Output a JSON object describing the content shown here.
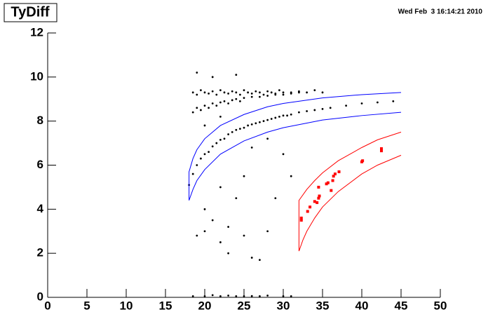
{
  "chart_data": {
    "type": "scatter",
    "title": "TyDiff",
    "date": "Wed Feb  3 16:14:21 2010",
    "xlim": [
      0,
      50
    ],
    "ylim": [
      0,
      12
    ],
    "xticks": [
      0,
      5,
      10,
      15,
      20,
      25,
      30,
      35,
      40,
      45,
      50
    ],
    "yticks": [
      0,
      2,
      4,
      6,
      8,
      10,
      12
    ],
    "series": [
      {
        "color": "#000000",
        "marker": "dot",
        "x": [
          18.5,
          19,
          19.5,
          20,
          20.5,
          21,
          21.5,
          22,
          22.5,
          23,
          23.5,
          24,
          24.5,
          25,
          25.5,
          26,
          26.5,
          27,
          27.5,
          28,
          28.5,
          29,
          29.5,
          30,
          31,
          32,
          33,
          34,
          35
        ],
        "values": [
          9.3,
          9.2,
          9.4,
          9.3,
          9.25,
          9.35,
          9.2,
          9.4,
          9.3,
          9.25,
          9.35,
          9.3,
          9.2,
          9.4,
          9.3,
          9.25,
          9.35,
          9.3,
          9.2,
          9.35,
          9.3,
          9.25,
          9.4,
          9.3,
          9.3,
          9.35,
          9.3,
          9.4,
          9.3
        ]
      },
      {
        "color": "#000000",
        "marker": "dot",
        "x": [
          18.5,
          19,
          19.5,
          20,
          20.5,
          21,
          21.5,
          22,
          22.5,
          23,
          23.5,
          24,
          24.5,
          25,
          26,
          27,
          28,
          29,
          30,
          31,
          32
        ],
        "values": [
          8.4,
          8.6,
          8.5,
          8.7,
          8.6,
          8.8,
          8.7,
          8.85,
          8.9,
          8.8,
          8.95,
          9.0,
          8.9,
          9.05,
          9.1,
          9.1,
          9.15,
          9.2,
          9.2,
          9.25,
          9.3
        ]
      },
      {
        "color": "#000000",
        "marker": "dot",
        "x": [
          18,
          19,
          20,
          21,
          22,
          23,
          24,
          25,
          26,
          27,
          28,
          29,
          30,
          31,
          32,
          34,
          36,
          38,
          40,
          42,
          44
        ],
        "values": [
          5.1,
          6.0,
          6.5,
          6.85,
          7.15,
          7.4,
          7.6,
          7.7,
          7.85,
          7.95,
          8.05,
          8.15,
          8.25,
          8.3,
          8.4,
          8.5,
          8.6,
          8.7,
          8.8,
          8.85,
          8.9
        ]
      },
      {
        "color": "#000000",
        "marker": "dot",
        "x": [
          18.5,
          19.5,
          20.5,
          21.5,
          22.5,
          23.5,
          24.5,
          25.5,
          26.5,
          27.5,
          28.5,
          29.5,
          30.5,
          33,
          35
        ],
        "values": [
          5.6,
          6.3,
          6.6,
          7.0,
          7.2,
          7.5,
          7.65,
          7.8,
          7.9,
          8.0,
          8.1,
          8.2,
          8.25,
          8.45,
          8.55
        ]
      },
      {
        "color": "#000000",
        "marker": "dot",
        "x": [
          19,
          21,
          24,
          20,
          21,
          22,
          23,
          25,
          24,
          26,
          27,
          20,
          22,
          28,
          30,
          19,
          23,
          25,
          29,
          31,
          20,
          22,
          26,
          28
        ],
        "values": [
          10.2,
          10.0,
          10.1,
          4.0,
          3.5,
          2.5,
          3.2,
          2.8,
          4.5,
          1.8,
          1.7,
          3.0,
          5.0,
          3.0,
          6.5,
          2.8,
          2.0,
          5.5,
          4.5,
          5.5,
          7.8,
          8.2,
          6.8,
          7.2
        ]
      },
      {
        "color": "#000000",
        "marker": "dot",
        "x": [
          18.5,
          20,
          21,
          22,
          23,
          24,
          25,
          26,
          27,
          28,
          30,
          31
        ],
        "values": [
          0.05,
          0.05,
          0.1,
          0.05,
          0.08,
          0.05,
          0.05,
          0.06,
          0.05,
          0.08,
          0.05,
          0.05
        ]
      },
      {
        "color": "#ff0000",
        "marker": "square",
        "x": [
          32.3,
          32.3,
          33.1,
          33.4,
          34,
          34.3,
          34.5,
          34.6,
          34.5,
          35.5,
          35.7,
          36.1,
          36.3,
          36.4,
          36.6,
          37.1,
          40,
          40.1,
          42.5,
          42.5
        ],
        "values": [
          3.5,
          3.6,
          3.9,
          4.1,
          4.35,
          4.3,
          4.5,
          4.6,
          5.0,
          5.15,
          5.2,
          4.85,
          5.3,
          5.5,
          5.6,
          5.7,
          6.15,
          6.2,
          6.65,
          6.75
        ]
      },
      {
        "color": "#0000ff",
        "marker": "line",
        "x": [
          45,
          40,
          35,
          30,
          28,
          25,
          22,
          20,
          19,
          18.5,
          18,
          18,
          18.5,
          19,
          20,
          22,
          25,
          28,
          30,
          35,
          40,
          45
        ],
        "values": [
          8.4,
          8.25,
          8.05,
          7.7,
          7.5,
          7.1,
          6.5,
          5.8,
          5.3,
          4.9,
          4.4,
          5.7,
          6.3,
          6.7,
          7.2,
          7.8,
          8.3,
          8.65,
          8.8,
          9.05,
          9.2,
          9.3
        ]
      },
      {
        "color": "#ff0000",
        "marker": "line",
        "x": [
          45,
          42,
          40,
          37,
          35,
          34,
          33,
          32.5,
          32,
          32,
          33,
          34,
          35,
          37,
          40,
          42,
          45
        ],
        "values": [
          6.45,
          6.0,
          5.6,
          4.8,
          4.1,
          3.6,
          3.0,
          2.6,
          2.1,
          4.4,
          4.9,
          5.3,
          5.65,
          6.2,
          6.8,
          7.15,
          7.5
        ]
      }
    ]
  }
}
